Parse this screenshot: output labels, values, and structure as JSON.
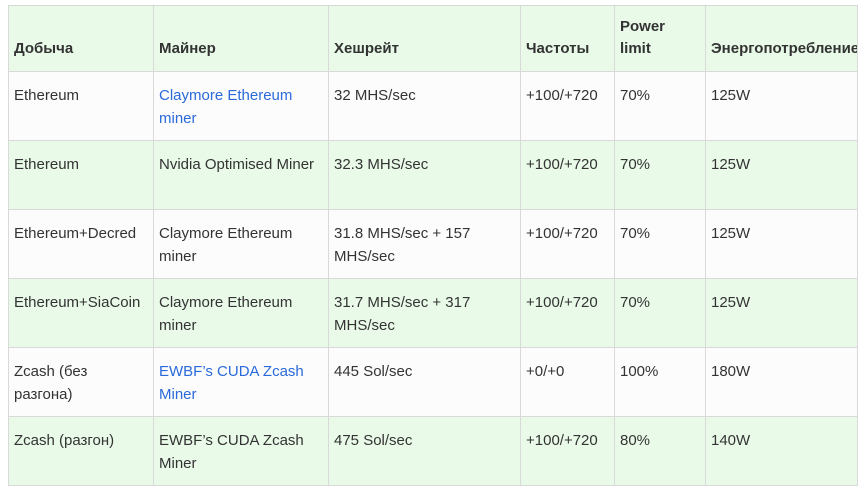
{
  "table": {
    "title_semantic": "gpu-mining-performance-table",
    "columns": [
      "Добыча",
      "Майнер",
      "Хешрейт",
      "Частоты",
      "Power limit",
      "Энергопотребление"
    ],
    "rows": [
      {
        "mining": "Ethereum",
        "miner": "Claymore Ethereum miner",
        "miner_is_link": true,
        "hashrate": "32 MHS/sec",
        "frequencies": "+100/+720",
        "power_limit": "70%",
        "power_consumption": "125W"
      },
      {
        "mining": "Ethereum",
        "miner": "Nvidia Optimised Miner",
        "miner_is_link": false,
        "hashrate": "32.3 MHS/sec",
        "frequencies": "+100/+720",
        "power_limit": "70%",
        "power_consumption": "125W"
      },
      {
        "mining": "Ethereum+Decred",
        "miner": "Claymore Ethereum miner",
        "miner_is_link": false,
        "hashrate": "31.8 MHS/sec + 157 MHS/sec",
        "frequencies": "+100/+720",
        "power_limit": "70%",
        "power_consumption": "125W"
      },
      {
        "mining": "Ethereum+SiaCoin",
        "miner": "Claymore Ethereum miner",
        "miner_is_link": false,
        "hashrate": "31.7 MHS/sec + 317 MHS/sec",
        "frequencies": "+100/+720",
        "power_limit": "70%",
        "power_consumption": "125W"
      },
      {
        "mining": "Zcash (без разгона)",
        "miner": "EWBF’s CUDA Zcash Miner",
        "miner_is_link": true,
        "hashrate": "445 Sol/sec",
        "frequencies": "+0/+0",
        "power_limit": "100%",
        "power_consumption": "180W"
      },
      {
        "mining": "Zcash (разгон)",
        "miner": "EWBF’s CUDA Zcash Miner",
        "miner_is_link": false,
        "hashrate": "475 Sol/sec",
        "frequencies": "+100/+720",
        "power_limit": "80%",
        "power_consumption": "140W"
      }
    ],
    "colors": {
      "header_bg": "#e9fae9",
      "stripe_bg": "#e9fae9",
      "row_bg": "#fcfcfc",
      "border": "#d9d9d9",
      "text": "#333333",
      "link": "#2a6ada"
    }
  }
}
